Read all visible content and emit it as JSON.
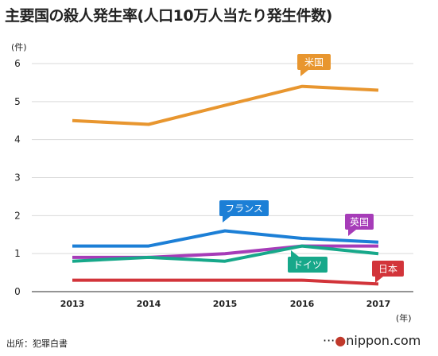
{
  "title": "主要国の殺人発生率(人口10万人当たり発生件数)",
  "source": "出所：犯罪白書",
  "brand": {
    "leading_dots": "···",
    "dot": "●",
    "name": "nippon.com"
  },
  "chart_data": {
    "type": "line",
    "title": "主要国の殺人発生率(人口10万人当たり発生件数)",
    "ylabel": "(件)",
    "xlabel": "(年)",
    "x": [
      "2013",
      "2014",
      "2015",
      "2016",
      "2017"
    ],
    "yticks": [
      "0",
      "1",
      "2",
      "3",
      "4",
      "5",
      "6"
    ],
    "ylim": [
      0,
      6
    ],
    "grid": true,
    "legend": "inline labels",
    "series": [
      {
        "name": "米国",
        "values": [
          4.5,
          4.4,
          4.9,
          5.4,
          5.3
        ],
        "color": "#e8962f"
      },
      {
        "name": "フランス",
        "values": [
          1.2,
          1.2,
          1.6,
          1.4,
          1.3
        ],
        "color": "#1c7fd6"
      },
      {
        "name": "英国",
        "values": [
          0.9,
          0.9,
          1.0,
          1.2,
          1.2
        ],
        "color": "#a63cb8"
      },
      {
        "name": "ドイツ",
        "values": [
          0.8,
          0.9,
          0.8,
          1.2,
          1.0
        ],
        "color": "#17a88a"
      },
      {
        "name": "日本",
        "values": [
          0.3,
          0.3,
          0.3,
          0.3,
          0.2
        ],
        "color": "#d2343a"
      }
    ]
  }
}
